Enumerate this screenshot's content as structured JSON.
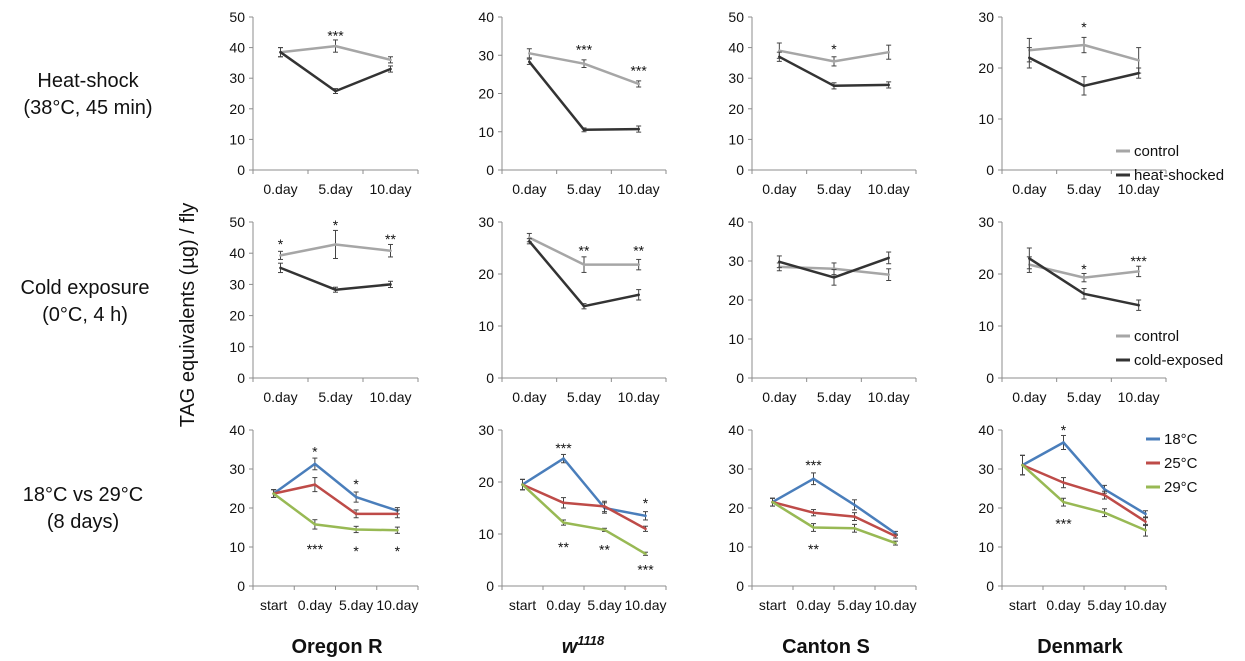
{
  "figure": {
    "ylabel": "TAG equivalents (µg) / fly",
    "columns": [
      {
        "label": "Oregon R",
        "sup": ""
      },
      {
        "label": "w",
        "sup": "1118"
      },
      {
        "label": "Canton S",
        "sup": ""
      },
      {
        "label": "Denmark",
        "sup": ""
      }
    ],
    "rows": [
      {
        "lines": [
          "Heat-shock",
          "(38°C, 45 min)"
        ]
      },
      {
        "lines": [
          "Cold exposure",
          "(0°C, 4 h)"
        ]
      },
      {
        "lines": [
          "18°C vs 29°C",
          "(8 days)"
        ]
      }
    ],
    "legends": [
      {
        "row": 0,
        "entries": [
          {
            "name": "control",
            "color": "#a6a6a6"
          },
          {
            "name": "heat-shocked",
            "color": "#333333"
          }
        ]
      },
      {
        "row": 1,
        "entries": [
          {
            "name": "control",
            "color": "#a6a6a6"
          },
          {
            "name": "cold-exposed",
            "color": "#333333"
          }
        ]
      },
      {
        "row": 2,
        "entries": [
          {
            "name": "18°C",
            "color": "#4a7ebb"
          },
          {
            "name": "25°C",
            "color": "#be4b48"
          },
          {
            "name": "29°C",
            "color": "#98b954"
          }
        ]
      }
    ]
  },
  "chart_data": [
    {
      "row": 0,
      "col": 0,
      "type": "line",
      "categories": [
        "0.day",
        "5.day",
        "10.day"
      ],
      "ylim": [
        0,
        50
      ],
      "yticks": [
        0,
        10,
        20,
        30,
        40,
        50
      ],
      "series": [
        {
          "name": "control",
          "color": "#a6a6a6",
          "values": [
            38.5,
            40.5,
            36
          ],
          "errors": [
            1.5,
            2,
            1
          ]
        },
        {
          "name": "heat-shocked",
          "color": "#333333",
          "values": [
            38.5,
            25.8,
            33
          ],
          "errors": [
            1.5,
            0.8,
            1
          ]
        }
      ],
      "annotations": [
        {
          "index": 1,
          "y": 44,
          "text": "***"
        }
      ]
    },
    {
      "row": 0,
      "col": 1,
      "type": "line",
      "categories": [
        "0.day",
        "5.day",
        "10.day"
      ],
      "ylim": [
        0,
        40
      ],
      "yticks": [
        0,
        10,
        20,
        30,
        40
      ],
      "series": [
        {
          "name": "control",
          "color": "#a6a6a6",
          "values": [
            30.5,
            27.8,
            22.5
          ],
          "errors": [
            1.2,
            1,
            0.8
          ]
        },
        {
          "name": "heat-shocked",
          "color": "#333333",
          "values": [
            28.3,
            10.5,
            10.7
          ],
          "errors": [
            0.7,
            0.5,
            0.8
          ]
        }
      ],
      "annotations": [
        {
          "index": 1,
          "y": 31.5,
          "text": "***"
        },
        {
          "index": 2,
          "y": 26,
          "text": "***"
        }
      ]
    },
    {
      "row": 0,
      "col": 2,
      "type": "line",
      "categories": [
        "0.day",
        "5.day",
        "10.day"
      ],
      "ylim": [
        0,
        50
      ],
      "yticks": [
        0,
        10,
        20,
        30,
        40,
        50
      ],
      "series": [
        {
          "name": "control",
          "color": "#a6a6a6",
          "values": [
            39,
            35.5,
            38.5
          ],
          "errors": [
            2.5,
            1.5,
            2.3
          ]
        },
        {
          "name": "heat-shocked",
          "color": "#333333",
          "values": [
            37,
            27.5,
            27.8
          ],
          "errors": [
            1.5,
            1,
            1
          ]
        }
      ],
      "annotations": [
        {
          "index": 1,
          "y": 39.5,
          "text": "*"
        }
      ]
    },
    {
      "row": 0,
      "col": 3,
      "type": "line",
      "categories": [
        "0.day",
        "5.day",
        "10.day"
      ],
      "ylim": [
        0,
        30
      ],
      "yticks": [
        0,
        10,
        20,
        30
      ],
      "series": [
        {
          "name": "control",
          "color": "#a6a6a6",
          "values": [
            23.5,
            24.5,
            21.5
          ],
          "errors": [
            2.3,
            1.5,
            2.5
          ]
        },
        {
          "name": "heat-shocked",
          "color": "#333333",
          "values": [
            22,
            16.5,
            19
          ],
          "errors": [
            2,
            1.8,
            1
          ]
        }
      ],
      "annotations": [
        {
          "index": 1,
          "y": 28,
          "text": "*"
        }
      ]
    },
    {
      "row": 1,
      "col": 0,
      "type": "line",
      "categories": [
        "0.day",
        "5.day",
        "10.day"
      ],
      "ylim": [
        0,
        50
      ],
      "yticks": [
        0,
        10,
        20,
        30,
        40,
        50
      ],
      "series": [
        {
          "name": "control",
          "color": "#a6a6a6",
          "values": [
            39.3,
            42.8,
            40.8
          ],
          "errors": [
            1.3,
            4.5,
            2
          ]
        },
        {
          "name": "cold-exposed",
          "color": "#333333",
          "values": [
            35.3,
            28.3,
            30
          ],
          "errors": [
            1.5,
            0.8,
            1
          ]
        }
      ],
      "annotations": [
        {
          "index": 0,
          "y": 43,
          "text": "*"
        },
        {
          "index": 1,
          "y": 49,
          "text": "*"
        },
        {
          "index": 2,
          "y": 44.5,
          "text": "**"
        }
      ]
    },
    {
      "row": 1,
      "col": 1,
      "type": "line",
      "categories": [
        "0.day",
        "5.day",
        "10.day"
      ],
      "ylim": [
        0,
        30
      ],
      "yticks": [
        0,
        10,
        20,
        30
      ],
      "series": [
        {
          "name": "control",
          "color": "#a6a6a6",
          "values": [
            27,
            21.8,
            21.8
          ],
          "errors": [
            0.8,
            1.5,
            1
          ]
        },
        {
          "name": "cold-exposed",
          "color": "#333333",
          "values": [
            26.3,
            13.8,
            16
          ],
          "errors": [
            0.5,
            0.5,
            1
          ]
        }
      ],
      "annotations": [
        {
          "index": 1,
          "y": 24.5,
          "text": "**"
        },
        {
          "index": 2,
          "y": 24.5,
          "text": "**"
        }
      ]
    },
    {
      "row": 1,
      "col": 2,
      "type": "line",
      "categories": [
        "0.day",
        "5.day",
        "10.day"
      ],
      "ylim": [
        0,
        40
      ],
      "yticks": [
        0,
        10,
        20,
        30,
        40
      ],
      "series": [
        {
          "name": "control",
          "color": "#a6a6a6",
          "values": [
            28.5,
            28,
            26.5
          ],
          "errors": [
            1,
            1.5,
            1.5
          ]
        },
        {
          "name": "cold-exposed",
          "color": "#333333",
          "values": [
            29.8,
            25.8,
            30.8
          ],
          "errors": [
            1.5,
            2,
            1.5
          ]
        }
      ],
      "annotations": []
    },
    {
      "row": 1,
      "col": 3,
      "type": "line",
      "categories": [
        "0.day",
        "5.day",
        "10.day"
      ],
      "ylim": [
        0,
        30
      ],
      "yticks": [
        0,
        10,
        20,
        30
      ],
      "series": [
        {
          "name": "control",
          "color": "#a6a6a6",
          "values": [
            21.8,
            19.3,
            20.5
          ],
          "errors": [
            1.5,
            0.8,
            1
          ]
        },
        {
          "name": "cold-exposed",
          "color": "#333333",
          "values": [
            23,
            16.2,
            14
          ],
          "errors": [
            2,
            1,
            1
          ]
        }
      ],
      "annotations": [
        {
          "index": 1,
          "y": 21,
          "text": "*"
        },
        {
          "index": 2,
          "y": 22.5,
          "text": "***"
        }
      ]
    },
    {
      "row": 2,
      "col": 0,
      "type": "line",
      "categories": [
        "start",
        "0.day",
        "5.day",
        "10.day"
      ],
      "ylim": [
        0,
        40
      ],
      "yticks": [
        0,
        10,
        20,
        30,
        40
      ],
      "series": [
        {
          "name": "18°C",
          "color": "#4a7ebb",
          "values": [
            23.7,
            31.3,
            22.8,
            19.3
          ],
          "errors": [
            1,
            1.5,
            1.3,
            0.8
          ]
        },
        {
          "name": "25°C",
          "color": "#be4b48",
          "values": [
            23.7,
            26,
            18.5,
            18.5
          ],
          "errors": [
            1,
            1.8,
            1,
            1
          ]
        },
        {
          "name": "29°C",
          "color": "#98b954",
          "values": [
            23.7,
            15.8,
            14.5,
            14.3
          ],
          "errors": [
            1,
            1.2,
            0.8,
            0.8
          ]
        }
      ],
      "annotations": [
        {
          "index": 1,
          "y": 34.5,
          "text": "*"
        },
        {
          "index": 2,
          "y": 26.2,
          "text": "*"
        },
        {
          "index": 1,
          "y": 9.5,
          "text": "***"
        },
        {
          "index": 2,
          "y": 9,
          "text": "*"
        },
        {
          "index": 3,
          "y": 9,
          "text": "*"
        }
      ]
    },
    {
      "row": 2,
      "col": 1,
      "type": "line",
      "categories": [
        "start",
        "0.day",
        "5.day",
        "10.day"
      ],
      "ylim": [
        0,
        30
      ],
      "yticks": [
        0,
        10,
        20,
        30
      ],
      "series": [
        {
          "name": "18°C",
          "color": "#4a7ebb",
          "values": [
            19.5,
            24.5,
            15,
            13.5
          ],
          "errors": [
            1,
            0.8,
            1,
            0.8
          ]
        },
        {
          "name": "25°C",
          "color": "#be4b48",
          "values": [
            19.5,
            16,
            15.3,
            11
          ],
          "errors": [
            1,
            1,
            1,
            0.5
          ]
        },
        {
          "name": "29°C",
          "color": "#98b954",
          "values": [
            19.5,
            12.2,
            10.8,
            6.2
          ],
          "errors": [
            1,
            0.5,
            0.3,
            0.3
          ]
        }
      ],
      "annotations": [
        {
          "index": 1,
          "y": 26.5,
          "text": "***"
        },
        {
          "index": 3,
          "y": 16,
          "text": "*"
        },
        {
          "index": 1,
          "y": 7.5,
          "text": "**"
        },
        {
          "index": 2,
          "y": 7,
          "text": "**"
        },
        {
          "index": 3,
          "y": 3.2,
          "text": "***"
        }
      ]
    },
    {
      "row": 2,
      "col": 2,
      "type": "line",
      "categories": [
        "start",
        "0.day",
        "5.day",
        "10.day"
      ],
      "ylim": [
        0,
        40
      ],
      "yticks": [
        0,
        10,
        20,
        30,
        40
      ],
      "series": [
        {
          "name": "18°C",
          "color": "#4a7ebb",
          "values": [
            21.5,
            27.5,
            20.8,
            13.5
          ],
          "errors": [
            1,
            1.5,
            1.3,
            0.5
          ]
        },
        {
          "name": "25°C",
          "color": "#be4b48",
          "values": [
            21.5,
            18.8,
            17.8,
            12.8
          ],
          "errors": [
            1,
            0.8,
            1,
            0.5
          ]
        },
        {
          "name": "29°C",
          "color": "#98b954",
          "values": [
            21.5,
            15,
            14.8,
            11
          ],
          "errors": [
            1,
            1,
            1,
            0.5
          ]
        }
      ],
      "annotations": [
        {
          "index": 1,
          "y": 31,
          "text": "***"
        },
        {
          "index": 1,
          "y": 9.5,
          "text": "**"
        }
      ]
    },
    {
      "row": 2,
      "col": 3,
      "type": "line",
      "categories": [
        "start",
        "0.day",
        "5.day",
        "10.day"
      ],
      "ylim": [
        0,
        40
      ],
      "yticks": [
        0,
        10,
        20,
        30,
        40
      ],
      "series": [
        {
          "name": "18°C",
          "color": "#4a7ebb",
          "values": [
            31,
            36.8,
            24.8,
            18.5
          ],
          "errors": [
            2.5,
            1.8,
            1,
            0.8
          ]
        },
        {
          "name": "25°C",
          "color": "#be4b48",
          "values": [
            31,
            26.5,
            23.3,
            16.5
          ],
          "errors": [
            2.5,
            1.3,
            1,
            1
          ]
        },
        {
          "name": "29°C",
          "color": "#98b954",
          "values": [
            31,
            21.5,
            18.8,
            14.3
          ],
          "errors": [
            2.5,
            1,
            1,
            1.5
          ]
        }
      ],
      "annotations": [
        {
          "index": 1,
          "y": 40,
          "text": "*"
        },
        {
          "index": 1,
          "y": 16,
          "text": "***"
        }
      ]
    }
  ]
}
